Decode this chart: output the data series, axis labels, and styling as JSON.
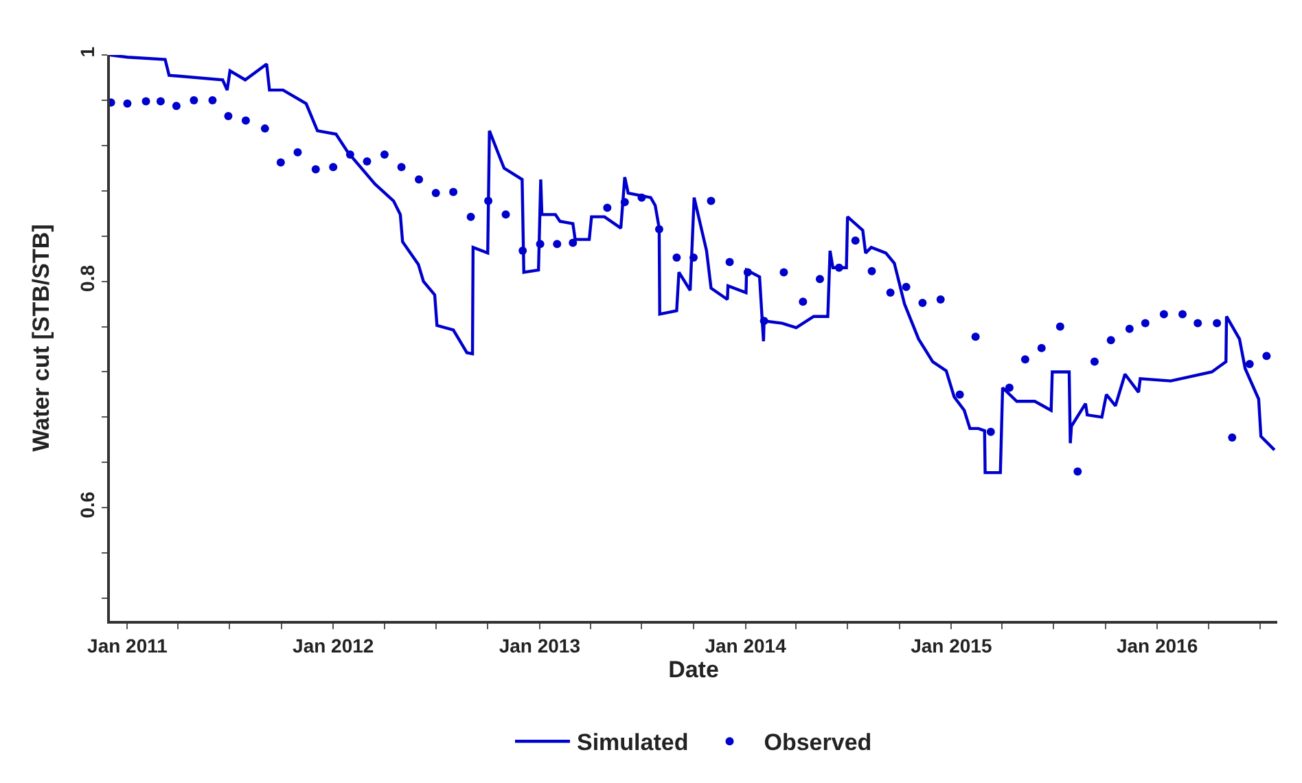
{
  "chart_data": {
    "type": "line",
    "xlabel": "Date",
    "ylabel": "Water cut [STB/STB]",
    "xlim": [
      "2010-12-01",
      "2016-08-01"
    ],
    "xticks": [
      {
        "value": "2011-01-01",
        "label": "Jan 2011"
      },
      {
        "value": "2011-04-01",
        "label": null
      },
      {
        "value": "2011-07-01",
        "label": null
      },
      {
        "value": "2011-10-01",
        "label": null
      },
      {
        "value": "2012-01-01",
        "label": "Jan 2012"
      },
      {
        "value": "2012-04-01",
        "label": null
      },
      {
        "value": "2012-07-01",
        "label": null
      },
      {
        "value": "2012-10-01",
        "label": null
      },
      {
        "value": "2013-01-01",
        "label": "Jan 2013"
      },
      {
        "value": "2013-04-01",
        "label": null
      },
      {
        "value": "2013-07-01",
        "label": null
      },
      {
        "value": "2013-10-01",
        "label": null
      },
      {
        "value": "2014-01-01",
        "label": "Jan 2014"
      },
      {
        "value": "2014-04-01",
        "label": null
      },
      {
        "value": "2014-07-01",
        "label": null
      },
      {
        "value": "2014-10-01",
        "label": null
      },
      {
        "value": "2015-01-01",
        "label": "Jan 2015"
      },
      {
        "value": "2015-04-01",
        "label": null
      },
      {
        "value": "2015-07-01",
        "label": null
      },
      {
        "value": "2015-10-01",
        "label": null
      },
      {
        "value": "2016-01-01",
        "label": "Jan 2016"
      },
      {
        "value": "2016-04-01",
        "label": null
      },
      {
        "value": "2016-07-01",
        "label": null
      }
    ],
    "ylim": [
      0.5,
      1.0
    ],
    "yticks": [
      {
        "value": 0.52,
        "label": null
      },
      {
        "value": 0.56,
        "label": null
      },
      0.6,
      {
        "value": 0.64,
        "label": null
      },
      {
        "value": 0.68,
        "label": null
      },
      {
        "value": 0.72,
        "label": null
      },
      {
        "value": 0.76,
        "label": null
      },
      0.8,
      {
        "value": 0.84,
        "label": null
      },
      {
        "value": 0.88,
        "label": null
      },
      {
        "value": 0.92,
        "label": null
      },
      {
        "value": 0.96,
        "label": null
      },
      1
    ],
    "legend": "bottom",
    "series": [
      {
        "name": "Simulated",
        "color": "#0000cc",
        "marker": "none",
        "line_style": "solid",
        "x": [
          "2010-12-01",
          "2011-01-01",
          "2011-03-09",
          "2011-03-16",
          "2011-06-19",
          "2011-06-27",
          "2011-07-02",
          "2011-07-29",
          "2011-09-05",
          "2011-09-10",
          "2011-10-04",
          "2011-11-14",
          "2011-12-04",
          "2012-01-06",
          "2012-01-27",
          "2012-03-15",
          "2012-04-17",
          "2012-04-29",
          "2012-05-03",
          "2012-05-31",
          "2012-06-09",
          "2012-06-29",
          "2012-07-03",
          "2012-08-01",
          "2012-08-25",
          "2012-09-04",
          "2012-09-05",
          "2012-10-01",
          "2012-10-04",
          "2012-10-22",
          "2012-10-30",
          "2012-12-01",
          "2012-12-04",
          "2012-12-30",
          "2013-01-03",
          "2013-01-05",
          "2013-01-29",
          "2013-02-06",
          "2013-03-01",
          "2013-03-05",
          "2013-03-30",
          "2013-04-03",
          "2013-04-26",
          "2013-05-25",
          "2013-06-01",
          "2013-06-07",
          "2013-07-17",
          "2013-07-25",
          "2013-08-01",
          "2013-08-02",
          "2013-09-01",
          "2013-09-05",
          "2013-09-25",
          "2013-10-02",
          "2013-10-24",
          "2013-11-01",
          "2013-11-30",
          "2013-12-01",
          "2014-01-02",
          "2014-01-03",
          "2014-01-26",
          "2014-02-02",
          "2014-02-03",
          "2014-03-07",
          "2014-04-01",
          "2014-05-02",
          "2014-05-27",
          "2014-05-31",
          "2014-06-05",
          "2014-06-29",
          "2014-07-01",
          "2014-07-28",
          "2014-08-02",
          "2014-08-12",
          "2014-09-07",
          "2014-09-22",
          "2014-10-10",
          "2014-11-04",
          "2014-11-29",
          "2014-12-23",
          "2015-01-06",
          "2015-01-24",
          "2015-02-03",
          "2015-02-18",
          "2015-03-01",
          "2015-03-02",
          "2015-03-29",
          "2015-04-02",
          "2015-04-27",
          "2015-05-29",
          "2015-06-27",
          "2015-06-29",
          "2015-07-29",
          "2015-07-31",
          "2015-08-02",
          "2015-08-27",
          "2015-08-30",
          "2015-09-25",
          "2015-10-03",
          "2015-10-19",
          "2015-11-05",
          "2015-11-29",
          "2015-12-02",
          "2016-01-25",
          "2016-04-07",
          "2016-05-02",
          "2016-05-03",
          "2016-05-26",
          "2016-06-05",
          "2016-06-29",
          "2016-07-03",
          "2016-07-27"
        ],
        "values": [
          1.0,
          0.998,
          0.996,
          0.982,
          0.978,
          0.969,
          0.986,
          0.978,
          0.992,
          0.969,
          0.969,
          0.957,
          0.933,
          0.93,
          0.914,
          0.886,
          0.871,
          0.859,
          0.835,
          0.815,
          0.8,
          0.788,
          0.761,
          0.757,
          0.737,
          0.736,
          0.83,
          0.825,
          0.933,
          0.91,
          0.9,
          0.89,
          0.808,
          0.81,
          0.89,
          0.859,
          0.859,
          0.853,
          0.851,
          0.837,
          0.837,
          0.857,
          0.857,
          0.847,
          0.892,
          0.878,
          0.874,
          0.867,
          0.847,
          0.771,
          0.774,
          0.808,
          0.792,
          0.874,
          0.827,
          0.794,
          0.784,
          0.796,
          0.79,
          0.81,
          0.804,
          0.747,
          0.765,
          0.763,
          0.759,
          0.769,
          0.769,
          0.827,
          0.812,
          0.812,
          0.857,
          0.845,
          0.825,
          0.83,
          0.825,
          0.816,
          0.78,
          0.749,
          0.729,
          0.721,
          0.698,
          0.686,
          0.67,
          0.67,
          0.668,
          0.631,
          0.631,
          0.706,
          0.694,
          0.694,
          0.686,
          0.72,
          0.72,
          0.657,
          0.672,
          0.692,
          0.682,
          0.68,
          0.7,
          0.69,
          0.718,
          0.702,
          0.714,
          0.712,
          0.72,
          0.729,
          0.769,
          0.749,
          0.723,
          0.696,
          0.663,
          0.651
        ]
      },
      {
        "name": "Observed",
        "type": "scatter",
        "color": "#0000cc",
        "marker": "circle",
        "x": [
          "2010-12-03",
          "2011-01-01",
          "2011-02-03",
          "2011-03-01",
          "2011-03-29",
          "2011-04-29",
          "2011-06-01",
          "2011-06-29",
          "2011-07-30",
          "2011-09-02",
          "2011-09-30",
          "2011-10-30",
          "2011-12-01",
          "2012-01-01",
          "2012-01-31",
          "2012-03-01",
          "2012-04-01",
          "2012-05-01",
          "2012-06-01",
          "2012-07-01",
          "2012-08-01",
          "2012-09-01",
          "2012-10-02",
          "2012-11-02",
          "2012-12-02",
          "2013-01-02",
          "2013-02-01",
          "2013-03-01",
          "2013-05-01",
          "2013-06-01",
          "2013-07-01",
          "2013-08-01",
          "2013-09-01",
          "2013-10-01",
          "2013-11-01",
          "2013-12-04",
          "2014-01-05",
          "2014-02-03",
          "2014-03-10",
          "2014-04-13",
          "2014-05-13",
          "2014-06-16",
          "2014-07-15",
          "2014-08-13",
          "2014-09-15",
          "2014-10-13",
          "2014-11-11",
          "2014-12-13",
          "2015-01-16",
          "2015-02-13",
          "2015-03-12",
          "2015-04-14",
          "2015-05-12",
          "2015-06-10",
          "2015-07-13",
          "2015-08-13",
          "2015-09-12",
          "2015-10-11",
          "2015-11-13",
          "2015-12-11",
          "2016-01-13",
          "2016-02-15",
          "2016-03-13",
          "2016-04-16",
          "2016-05-13",
          "2016-06-13",
          "2016-07-13"
        ],
        "values": [
          0.958,
          0.957,
          0.959,
          0.959,
          0.955,
          0.96,
          0.96,
          0.946,
          0.942,
          0.935,
          0.905,
          0.914,
          0.899,
          0.901,
          0.912,
          0.906,
          0.912,
          0.901,
          0.89,
          0.878,
          0.879,
          0.857,
          0.871,
          0.859,
          0.827,
          0.833,
          0.833,
          0.834,
          0.865,
          0.87,
          0.874,
          0.846,
          0.821,
          0.821,
          0.871,
          0.817,
          0.808,
          0.765,
          0.808,
          0.782,
          0.802,
          0.812,
          0.836,
          0.809,
          0.79,
          0.795,
          0.781,
          0.784,
          0.7,
          0.751,
          0.667,
          0.706,
          0.731,
          0.741,
          0.76,
          0.632,
          0.729,
          0.748,
          0.758,
          0.763,
          0.771,
          0.771,
          0.763,
          0.763,
          0.662,
          0.727,
          0.734
        ]
      }
    ]
  }
}
